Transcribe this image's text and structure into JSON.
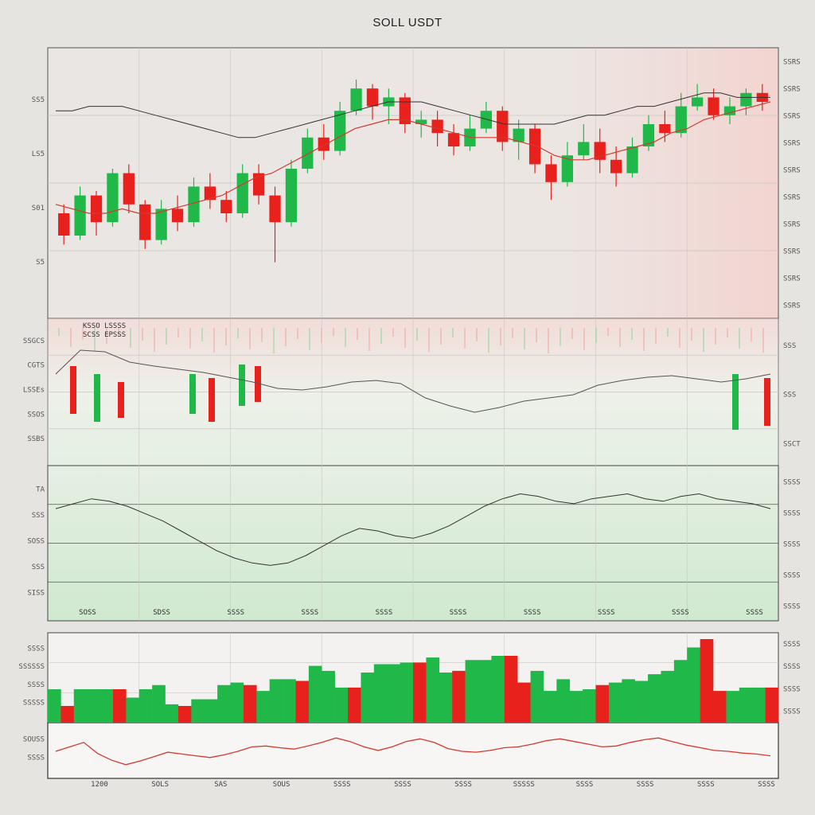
{
  "title": "SOLL USDT",
  "colors": {
    "up": "#21b84a",
    "down": "#e8211d",
    "ma1": "#d23a2e",
    "ma2": "#c66a6a",
    "line": "#333333",
    "grid": "#c9c6c2"
  },
  "chart_data": [
    {
      "type": "candlestick",
      "panel": "price",
      "y_labels": [
        "SS5",
        "LS5",
        "S01",
        "S5"
      ],
      "right_labels": [
        "SSRS",
        "SSRS",
        "SSRS",
        "SSRS",
        "SSRS",
        "SSRS",
        "SSRS",
        "SSRS",
        "SSRS",
        "SSRS"
      ],
      "ylim": [
        0,
        100
      ],
      "candles": [
        [
          40,
          30,
          44,
          26
        ],
        [
          30,
          48,
          52,
          28
        ],
        [
          48,
          36,
          50,
          30
        ],
        [
          36,
          58,
          60,
          34
        ],
        [
          58,
          44,
          62,
          40
        ],
        [
          44,
          28,
          46,
          24
        ],
        [
          28,
          42,
          46,
          26
        ],
        [
          42,
          36,
          48,
          32
        ],
        [
          36,
          52,
          56,
          34
        ],
        [
          52,
          46,
          58,
          42
        ],
        [
          46,
          40,
          50,
          36
        ],
        [
          40,
          58,
          62,
          38
        ],
        [
          58,
          48,
          62,
          44
        ],
        [
          48,
          36,
          52,
          18
        ],
        [
          36,
          60,
          64,
          34
        ],
        [
          60,
          74,
          78,
          58
        ],
        [
          74,
          68,
          80,
          64
        ],
        [
          68,
          86,
          90,
          66
        ],
        [
          86,
          96,
          100,
          84
        ],
        [
          96,
          88,
          98,
          82
        ],
        [
          88,
          92,
          96,
          80
        ],
        [
          92,
          80,
          94,
          76
        ],
        [
          80,
          82,
          86,
          74
        ],
        [
          82,
          76,
          86,
          70
        ],
        [
          76,
          70,
          80,
          66
        ],
        [
          70,
          78,
          84,
          68
        ],
        [
          78,
          86,
          90,
          76
        ],
        [
          86,
          72,
          88,
          68
        ],
        [
          72,
          78,
          82,
          64
        ],
        [
          78,
          62,
          80,
          58
        ],
        [
          62,
          54,
          66,
          46
        ],
        [
          54,
          66,
          72,
          52
        ],
        [
          66,
          72,
          80,
          64
        ],
        [
          72,
          64,
          78,
          58
        ],
        [
          64,
          58,
          70,
          52
        ],
        [
          58,
          70,
          74,
          56
        ],
        [
          70,
          80,
          84,
          68
        ],
        [
          80,
          76,
          86,
          72
        ],
        [
          76,
          88,
          94,
          74
        ],
        [
          88,
          92,
          98,
          86
        ],
        [
          92,
          84,
          96,
          82
        ],
        [
          84,
          88,
          92,
          80
        ],
        [
          88,
          94,
          96,
          84
        ],
        [
          94,
          90,
          98,
          86
        ]
      ],
      "ma_fast": [
        44,
        42,
        40,
        40,
        42,
        40,
        40,
        42,
        44,
        46,
        48,
        52,
        56,
        58,
        62,
        66,
        70,
        74,
        78,
        80,
        82,
        82,
        80,
        78,
        76,
        74,
        74,
        74,
        72,
        70,
        66,
        64,
        64,
        66,
        68,
        70,
        72,
        76,
        78,
        82,
        84,
        86,
        88,
        90
      ],
      "ma_slow": [
        86,
        86,
        88,
        88,
        88,
        86,
        84,
        82,
        80,
        78,
        76,
        74,
        74,
        76,
        78,
        80,
        82,
        84,
        86,
        88,
        90,
        90,
        90,
        88,
        86,
        84,
        82,
        80,
        80,
        80,
        80,
        82,
        84,
        84,
        86,
        88,
        88,
        90,
        92,
        94,
        94,
        92,
        92,
        92
      ]
    },
    {
      "type": "candlestick",
      "panel": "indicator-1",
      "y_labels": [
        "SSGCS",
        "CGTS",
        "LSSEs",
        "SSOS",
        "SSBS"
      ],
      "right_labels": [
        "SSS",
        "SSS",
        "SSCT"
      ],
      "annotations": [
        "KSSO LSSSS",
        "SCSS EPSSS"
      ],
      "ylim": [
        0,
        100
      ]
    },
    {
      "type": "line",
      "panel": "oscillator",
      "y_labels": [
        "TA",
        "SSS",
        "SOSS",
        "SSS",
        "SISS"
      ],
      "right_labels": [
        "SSSS",
        "SSSS",
        "SSSS",
        "SSSS",
        "SSSS"
      ],
      "tags": [
        "SOSS",
        "SDSS",
        "SSSS",
        "SSSS",
        "SSSS",
        "SSSS",
        "SSSS",
        "SSSS",
        "SSSS",
        "SSSS"
      ],
      "ylim": [
        0,
        100
      ],
      "values": [
        78,
        82,
        86,
        84,
        80,
        74,
        68,
        60,
        52,
        44,
        38,
        34,
        32,
        34,
        40,
        48,
        56,
        62,
        60,
        56,
        54,
        58,
        64,
        72,
        80,
        86,
        90,
        88,
        84,
        82,
        86,
        88,
        90,
        86,
        84,
        88,
        90,
        86,
        84,
        82,
        78
      ]
    },
    {
      "type": "bar",
      "panel": "volume",
      "y_labels": [
        "SSSS",
        "SSSSSS",
        "SSSS",
        "SSSSS"
      ],
      "right_labels": [
        "SSSS",
        "SSSS",
        "SSSS",
        "SSSS"
      ],
      "ylim": [
        0,
        100
      ],
      "values": [
        40,
        20,
        40,
        40,
        40,
        40,
        30,
        40,
        45,
        22,
        20,
        28,
        28,
        45,
        48,
        45,
        38,
        52,
        52,
        50,
        68,
        62,
        42,
        42,
        60,
        70,
        70,
        72,
        72,
        78,
        60,
        62,
        75,
        75,
        80,
        80,
        48,
        62,
        38,
        52,
        38,
        40,
        45,
        48,
        52,
        50,
        58,
        62,
        75,
        90,
        100,
        38,
        38,
        42,
        42,
        42
      ],
      "colors": [
        "up",
        "down",
        "up",
        "up",
        "up",
        "down",
        "up",
        "up",
        "up",
        "up",
        "down",
        "up",
        "up",
        "up",
        "up",
        "down",
        "up",
        "up",
        "up",
        "down",
        "up",
        "up",
        "up",
        "down",
        "up",
        "up",
        "up",
        "up",
        "down",
        "up",
        "up",
        "down",
        "up",
        "up",
        "up",
        "down",
        "down",
        "up",
        "up",
        "up",
        "up",
        "up",
        "down",
        "up",
        "up",
        "up",
        "up",
        "up",
        "up",
        "up",
        "down",
        "down",
        "up",
        "up",
        "up",
        "down"
      ]
    },
    {
      "type": "line",
      "panel": "bottom",
      "y_labels": [
        "SOUSS",
        "SSSS"
      ],
      "x_labels": [
        "1200",
        "SOLS",
        "SAS",
        "SOUS",
        "SSSS",
        "SSSS",
        "SSSS",
        "SSSSS",
        "SSSS",
        "SSSS",
        "SSSS",
        "SSSS"
      ],
      "ylim": [
        0,
        100
      ],
      "values": [
        50,
        60,
        70,
        45,
        30,
        20,
        28,
        38,
        48,
        44,
        40,
        36,
        42,
        50,
        60,
        62,
        58,
        55,
        62,
        70,
        80,
        72,
        60,
        52,
        60,
        72,
        78,
        70,
        56,
        50,
        48,
        52,
        58,
        60,
        66,
        74,
        78,
        72,
        66,
        60,
        62,
        70,
        76,
        80,
        72,
        64,
        58,
        52,
        50,
        46,
        44,
        40
      ]
    }
  ]
}
